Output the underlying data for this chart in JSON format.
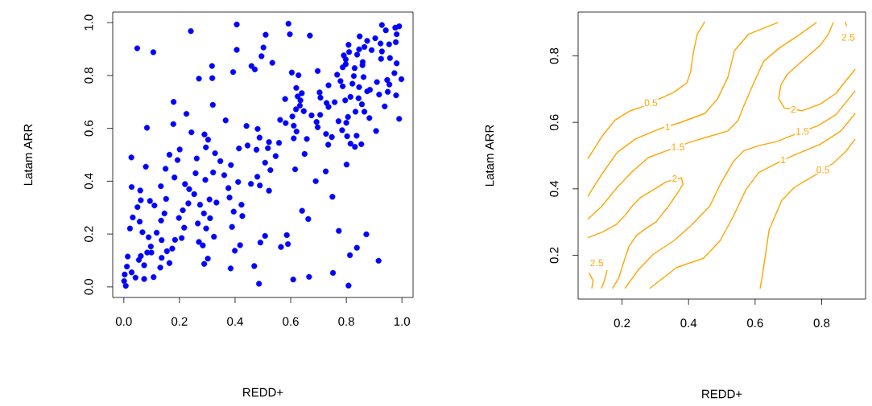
{
  "chart_data": [
    {
      "type": "scatter",
      "xlabel": "REDD+",
      "ylabel": "Latam ARR",
      "color": "#0000ff",
      "marker": "circle",
      "xlim": [
        -0.04,
        1.04
      ],
      "ylim": [
        -0.04,
        1.04
      ],
      "xticks": [
        {
          "value": 0,
          "label": "0.0"
        },
        0.2,
        0.4,
        0.6,
        0.8,
        {
          "value": 1,
          "label": "1.0"
        }
      ],
      "yticks": [
        {
          "value": 0,
          "label": "0.0"
        },
        0.2,
        0.4,
        0.6,
        0.8,
        {
          "value": 1,
          "label": "1.0"
        }
      ],
      "x": [
        0.406,
        0.241,
        0.048,
        0.106,
        0.406,
        0.317,
        0.27,
        0.318,
        0.393,
        0.459,
        0.471,
        0.495,
        0.179,
        0.32,
        0.225,
        0.366,
        0.083,
        0.178,
        0.243,
        0.29,
        0.303,
        0.441,
        0.481,
        0.488,
        0.027,
        0.201,
        0.193,
        0.164,
        0.262,
        0.295,
        0.328,
        0.347,
        0.414,
        0.445,
        0.477,
        0.079,
        0.15,
        0.182,
        0.22,
        0.258,
        0.293,
        0.321,
        0.361,
        0.385,
        0.411,
        0.457,
        0.48,
        0.489,
        0.028,
        0.059,
        0.133,
        0.152,
        0.094,
        0.061,
        0.11,
        0.049,
        0.235,
        0.253,
        0.232,
        0.212,
        0.198,
        0.274,
        0.308,
        0.333,
        0.376,
        0.38,
        0.288,
        0.31,
        0.266,
        0.296,
        0.324,
        0.389,
        0.395,
        0.423,
        0.426,
        0.032,
        0.022,
        0.057,
        0.067,
        0.089,
        0.118,
        0.136,
        0.146,
        0.134,
        0.217,
        0.208,
        0.184,
        0.27,
        0.284,
        0.014,
        0.097,
        0.099,
        0.084,
        0.155,
        0.174,
        0.136,
        0.061,
        0.054,
        0.073,
        0.164,
        0.131,
        0.107,
        0.073,
        0.042,
        0.011,
        0.003,
        0.001,
        0.007,
        0.028,
        0.302,
        0.289,
        0.384,
        0.469,
        0.486,
        0.418,
        0.399,
        0.491,
        0.592,
        0.597,
        0.669,
        0.51,
        0.502,
        0.534,
        0.604,
        0.628,
        0.697,
        0.808,
        0.848,
        0.875,
        0.904,
        0.923,
        0.928,
        0.942,
        0.976,
        0.99,
        0.981,
        0.978,
        0.954,
        0.928,
        0.925,
        0.957,
        0.981,
        0.891,
        0.865,
        0.846,
        0.81,
        0.791,
        0.798,
        0.839,
        0.859,
        0.858,
        0.83,
        0.787,
        0.798,
        0.767,
        0.827,
        0.862,
        0.91,
        0.947,
        0.955,
        0.973,
        0.998,
        0.779,
        0.787,
        0.822,
        0.846,
        0.736,
        0.704,
        0.707,
        0.62,
        0.64,
        0.625,
        0.635,
        0.633,
        0.58,
        0.619,
        0.647,
        0.606,
        0.562,
        0.582,
        0.611,
        0.621,
        0.611,
        0.658,
        0.675,
        0.706,
        0.693,
        0.697,
        0.729,
        0.736,
        0.758,
        0.796,
        0.815,
        0.844,
        0.856,
        0.833,
        0.865,
        0.883,
        0.885,
        0.875,
        0.918,
        0.949,
        0.979,
        0.938,
        0.99,
        0.907,
        0.772,
        0.806,
        0.8,
        0.785,
        0.803,
        0.837,
        0.748,
        0.727,
        0.735,
        0.815,
        0.831,
        0.854,
        0.558,
        0.522,
        0.518,
        0.546,
        0.508,
        0.527,
        0.65,
        0.616,
        0.726,
        0.69,
        0.801,
        0.522,
        0.75,
        0.641,
        0.663,
        0.773,
        0.872,
        0.508,
        0.586,
        0.59,
        0.565,
        0.838,
        0.813,
        0.916,
        0.609,
        0.666,
        0.752,
        0.808
      ],
      "values": [
        0.993,
        0.968,
        0.903,
        0.888,
        0.897,
        0.836,
        0.788,
        0.79,
        0.813,
        0.836,
        0.823,
        0.873,
        0.7,
        0.689,
        0.655,
        0.63,
        0.602,
        0.616,
        0.585,
        0.577,
        0.557,
        0.609,
        0.598,
        0.565,
        0.49,
        0.52,
        0.48,
        0.5,
        0.486,
        0.528,
        0.506,
        0.476,
        0.524,
        0.535,
        0.519,
        0.455,
        0.447,
        0.414,
        0.389,
        0.43,
        0.405,
        0.433,
        0.423,
        0.461,
        0.397,
        0.39,
        0.417,
        0.384,
        0.378,
        0.365,
        0.381,
        0.333,
        0.325,
        0.328,
        0.308,
        0.302,
        0.37,
        0.351,
        0.316,
        0.29,
        0.261,
        0.311,
        0.331,
        0.319,
        0.374,
        0.338,
        0.278,
        0.26,
        0.24,
        0.221,
        0.19,
        0.227,
        0.285,
        0.311,
        0.268,
        0.263,
        0.221,
        0.247,
        0.207,
        0.188,
        0.205,
        0.177,
        0.278,
        0.251,
        0.224,
        0.185,
        0.178,
        0.17,
        0.157,
        0.115,
        0.153,
        0.13,
        0.13,
        0.135,
        0.145,
        0.11,
        0.117,
        0.102,
        0.082,
        0.09,
        0.073,
        0.037,
        0.03,
        0.035,
        0.077,
        0.047,
        0.022,
        0.004,
        0.055,
        0.107,
        0.087,
        0.07,
        0.079,
        0.012,
        0.158,
        0.137,
        0.168,
        0.996,
        0.956,
        0.951,
        0.954,
        0.906,
        0.848,
        0.811,
        0.801,
        0.817,
        0.916,
        0.948,
        0.931,
        0.941,
        0.921,
        0.991,
        0.971,
        0.981,
        0.986,
        0.956,
        0.926,
        0.918,
        0.891,
        0.863,
        0.866,
        0.846,
        0.896,
        0.908,
        0.899,
        0.889,
        0.876,
        0.861,
        0.879,
        0.851,
        0.839,
        0.828,
        0.831,
        0.843,
        0.803,
        0.798,
        0.794,
        0.775,
        0.783,
        0.766,
        0.809,
        0.786,
        0.779,
        0.759,
        0.769,
        0.756,
        0.763,
        0.736,
        0.716,
        0.753,
        0.733,
        0.721,
        0.706,
        0.686,
        0.711,
        0.672,
        0.665,
        0.645,
        0.632,
        0.62,
        0.61,
        0.588,
        0.562,
        0.56,
        0.649,
        0.651,
        0.624,
        0.604,
        0.696,
        0.681,
        0.699,
        0.706,
        0.719,
        0.714,
        0.691,
        0.663,
        0.663,
        0.639,
        0.746,
        0.74,
        0.728,
        0.738,
        0.725,
        0.683,
        0.636,
        0.59,
        0.627,
        0.643,
        0.621,
        0.593,
        0.57,
        0.572,
        0.567,
        0.579,
        0.538,
        0.542,
        0.53,
        0.54,
        0.545,
        0.548,
        0.525,
        0.495,
        0.47,
        0.442,
        0.503,
        0.445,
        0.437,
        0.4,
        0.463,
        0.364,
        0.341,
        0.288,
        0.257,
        0.212,
        0.199,
        0.193,
        0.196,
        0.162,
        0.151,
        0.148,
        0.12,
        0.099,
        0.028,
        0.038,
        0.053,
        0.005
      ]
    },
    {
      "type": "line",
      "xlabel": "REDD+",
      "ylabel": "Latam ARR",
      "xlim": [
        0.068,
        0.932
      ],
      "ylim": [
        0.068,
        0.932
      ],
      "xticks": [
        0.2,
        0.4,
        0.6,
        0.8
      ],
      "yticks": [
        0.2,
        0.4,
        0.6,
        0.8
      ],
      "series": [
        {
          "color": "#ffa500",
          "x": [
            0.097,
            0.14,
            0.178,
            0.225,
            0.256,
            0.317,
            0.356,
            0.395,
            0.406,
            0.414,
            0.426,
            0.449
          ],
          "values": [
            0.49,
            0.558,
            0.606,
            0.635,
            0.645,
            0.673,
            0.691,
            0.719,
            0.752,
            0.808,
            0.865,
            0.903
          ]
        },
        {
          "color": "#ffa500",
          "x": [
            0.615,
            0.623,
            0.642,
            0.68,
            0.719,
            0.777,
            0.835,
            0.874,
            0.901
          ],
          "values": [
            0.1,
            0.147,
            0.276,
            0.365,
            0.405,
            0.439,
            0.477,
            0.514,
            0.55
          ]
        },
        {
          "color": "#ffa500",
          "x": [
            0.097,
            0.14,
            0.186,
            0.24,
            0.317,
            0.371,
            0.449,
            0.487,
            0.518,
            0.538,
            0.58,
            0.669
          ],
          "values": [
            0.377,
            0.445,
            0.51,
            0.55,
            0.582,
            0.598,
            0.627,
            0.671,
            0.735,
            0.816,
            0.865,
            0.901
          ]
        },
        {
          "color": "#ffa500",
          "x": [
            0.283,
            0.364,
            0.445,
            0.495,
            0.534,
            0.572,
            0.611,
            0.673,
            0.719,
            0.796,
            0.858,
            0.901
          ],
          "values": [
            0.1,
            0.163,
            0.191,
            0.244,
            0.316,
            0.397,
            0.449,
            0.481,
            0.502,
            0.534,
            0.574,
            0.627
          ]
        },
        {
          "color": "#ffa500",
          "x": [
            0.097,
            0.14,
            0.186,
            0.232,
            0.279,
            0.333,
            0.41,
            0.464,
            0.518,
            0.549,
            0.565,
            0.596,
            0.626,
            0.673,
            0.735,
            0.785
          ],
          "values": [
            0.308,
            0.348,
            0.405,
            0.453,
            0.494,
            0.514,
            0.542,
            0.558,
            0.574,
            0.606,
            0.647,
            0.719,
            0.784,
            0.824,
            0.865,
            0.901
          ]
        },
        {
          "color": "#ffa500",
          "x": [
            0.209,
            0.248,
            0.294,
            0.356,
            0.41,
            0.464,
            0.495,
            0.534,
            0.565,
            0.611,
            0.665,
            0.704,
            0.789,
            0.843,
            0.901
          ],
          "values": [
            0.1,
            0.155,
            0.203,
            0.244,
            0.292,
            0.348,
            0.413,
            0.481,
            0.514,
            0.53,
            0.542,
            0.558,
            0.59,
            0.623,
            0.695
          ]
        },
        {
          "color": "#ffa500",
          "x": [
            0.097,
            0.14,
            0.182,
            0.209,
            0.232,
            0.256,
            0.294,
            0.333,
            0.379,
            0.383,
            0.368,
            0.337,
            0.302,
            0.271,
            0.244,
            0.221,
            0.205,
            0.19,
            0.171
          ],
          "values": [
            0.253,
            0.269,
            0.292,
            0.32,
            0.35,
            0.374,
            0.397,
            0.421,
            0.433,
            0.413,
            0.389,
            0.344,
            0.3,
            0.28,
            0.26,
            0.227,
            0.179,
            0.131,
            0.1
          ]
        },
        {
          "color": "#ffa500",
          "x": [
            0.835,
            0.82,
            0.796,
            0.75,
            0.696,
            0.677,
            0.671,
            0.688,
            0.742,
            0.796,
            0.843,
            0.874,
            0.901
          ],
          "values": [
            0.901,
            0.865,
            0.832,
            0.792,
            0.744,
            0.711,
            0.671,
            0.643,
            0.635,
            0.655,
            0.687,
            0.727,
            0.76
          ]
        },
        {
          "color": "#ffa500",
          "x": [
            0.101,
            0.113,
            0.109,
            null,
            0.155,
            0.147,
            0.138
          ],
          "values": [
            0.147,
            0.123,
            0.1,
            null,
            0.155,
            0.123,
            0.1
          ]
        },
        {
          "color": "#ffa500",
          "x": [
            0.871,
            0.875
          ],
          "values": [
            0.903,
            0.89
          ]
        }
      ],
      "annotations": [
        {
          "text": "0.5",
          "x": 0.287,
          "y": 0.659
        },
        {
          "text": "0.5",
          "x": 0.804,
          "y": 0.457
        },
        {
          "text": "1",
          "x": 0.337,
          "y": 0.586
        },
        {
          "text": "1",
          "x": 0.684,
          "y": 0.487
        },
        {
          "text": "1.5",
          "x": 0.368,
          "y": 0.526
        },
        {
          "text": "1.5",
          "x": 0.742,
          "y": 0.573
        },
        {
          "text": "2",
          "x": 0.358,
          "y": 0.431
        },
        {
          "text": "2",
          "x": 0.715,
          "y": 0.639
        },
        {
          "text": "2.5",
          "x": 0.124,
          "y": 0.177
        },
        {
          "text": "2.5",
          "x": 0.88,
          "y": 0.856
        }
      ]
    }
  ]
}
